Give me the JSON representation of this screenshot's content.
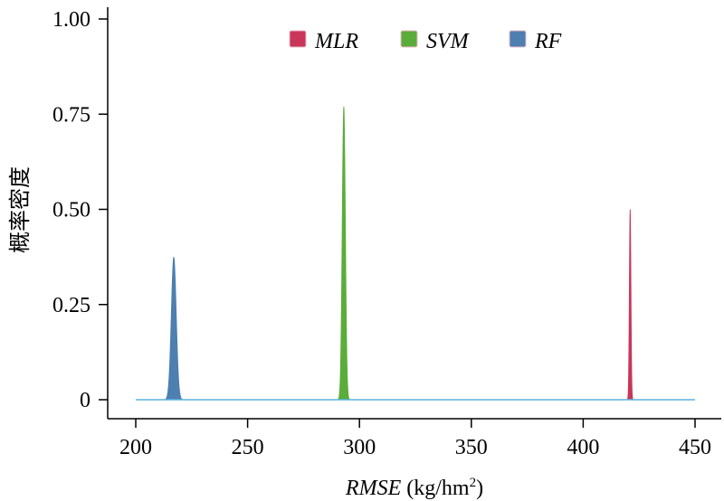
{
  "chart_data": {
    "type": "area",
    "xlabel": {
      "italic": "RMSE",
      "normal": " (kg/hm",
      "sup": "2",
      "close": ")"
    },
    "ylabel": "概率密度",
    "xlim": [
      200,
      450
    ],
    "ylim": [
      0,
      1
    ],
    "x_ticks": [
      "200",
      "250",
      "300",
      "350",
      "400",
      "450"
    ],
    "y_ticks": [
      "0",
      "0.25",
      "0.50",
      "0.75",
      "1.00"
    ],
    "legend_position": "top-center",
    "series": [
      {
        "name": "MLR",
        "color": "#c9365a",
        "peak_x": 421,
        "peak_y": 0.5,
        "spread": 0.35
      },
      {
        "name": "SVM",
        "color": "#5aad3a",
        "peak_x": 293,
        "peak_y": 0.77,
        "spread": 0.7
      },
      {
        "name": "RF",
        "color": "#4d7fb0",
        "peak_x": 217,
        "peak_y": 0.375,
        "spread": 1.1
      }
    ],
    "baseline_color": "#5bb3dd"
  }
}
